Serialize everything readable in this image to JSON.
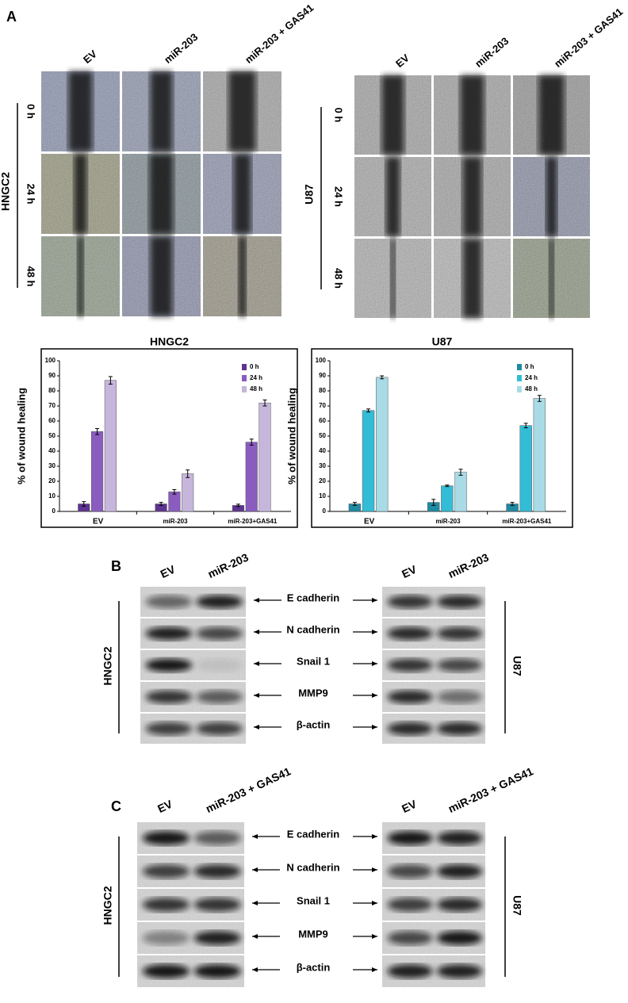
{
  "panels": {
    "a": "A",
    "b": "B",
    "c": "C"
  },
  "wound": {
    "columns": [
      "EV",
      "miR-203",
      "miR-203 + GAS41"
    ],
    "rows": [
      "0 h",
      "24 h",
      "48 h"
    ],
    "cells": [
      "HNGC2",
      "U87"
    ]
  },
  "chart_data": [
    {
      "type": "bar",
      "title": "HNGC2",
      "ylabel": "% of wound healing",
      "categories": [
        "EV",
        "miR-203",
        "miR-203+GAS41"
      ],
      "series": [
        {
          "name": "0 h",
          "color": "#5e3391",
          "values": [
            5,
            5,
            4
          ],
          "errors": [
            1.5,
            1,
            0.8
          ]
        },
        {
          "name": "24 h",
          "color": "#8a5cc0",
          "values": [
            53,
            13,
            46
          ],
          "errors": [
            2,
            1.5,
            2
          ]
        },
        {
          "name": "48 h",
          "color": "#c7b6dc",
          "values": [
            87,
            25,
            72
          ],
          "errors": [
            2.5,
            2.5,
            2
          ]
        }
      ],
      "ylim": [
        0,
        100
      ],
      "yticks": [
        0,
        10,
        20,
        30,
        40,
        50,
        60,
        70,
        80,
        90,
        100
      ],
      "legend": "upper right"
    },
    {
      "type": "bar",
      "title": "U87",
      "ylabel": "% of wound healing",
      "categories": [
        "EV",
        "miR-203",
        "miR-203+GAS41"
      ],
      "series": [
        {
          "name": "0 h",
          "color": "#1e8aa3",
          "values": [
            5,
            6,
            5
          ],
          "errors": [
            1,
            2,
            1
          ]
        },
        {
          "name": "24 h",
          "color": "#33bcd6",
          "values": [
            67,
            17,
            57
          ],
          "errors": [
            1,
            0.5,
            1.5
          ]
        },
        {
          "name": "48 h",
          "color": "#a9dbe6",
          "values": [
            89,
            26,
            75
          ],
          "errors": [
            1,
            2,
            2
          ]
        }
      ],
      "ylim": [
        0,
        100
      ],
      "yticks": [
        0,
        10,
        20,
        30,
        40,
        50,
        60,
        70,
        80,
        90,
        100
      ],
      "legend": "upper right"
    }
  ],
  "blot_b": {
    "columns": [
      "EV",
      "miR-203"
    ],
    "proteins": [
      "E cadherin",
      "N cadherin",
      "Snail 1",
      "MMP9",
      "β-actin"
    ],
    "left": "HNGC2",
    "right": "U87"
  },
  "blot_c": {
    "columns": [
      "EV",
      "miR-203 + GAS41"
    ],
    "proteins": [
      "E cadherin",
      "N cadherin",
      "Snail 1",
      "MMP9",
      "β-actin"
    ],
    "left": "HNGC2",
    "right": "U87"
  }
}
